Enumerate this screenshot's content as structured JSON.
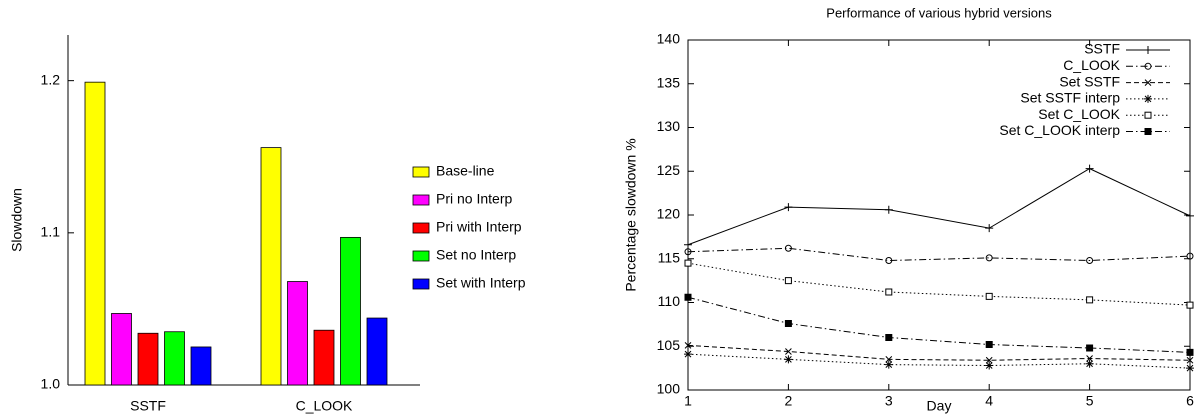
{
  "chart_data": [
    {
      "type": "bar",
      "y_label": "Slowdown",
      "categories": [
        "SSTF",
        "C_LOOK"
      ],
      "ylim": [
        1.0,
        1.23
      ],
      "yticks": [
        {
          "value": 1.0,
          "label": "1.0"
        },
        1.1,
        1.2
      ],
      "series": [
        {
          "name": "Base-line",
          "color": "#ffff00",
          "values": [
            1.199,
            1.156
          ]
        },
        {
          "name": "Pri no Interp",
          "color": "#ff00ff",
          "values": [
            1.047,
            1.068
          ]
        },
        {
          "name": "Pri with Interp",
          "color": "#ff0000",
          "values": [
            1.034,
            1.036
          ]
        },
        {
          "name": "Set no Interp",
          "color": "#00ff00",
          "values": [
            1.035,
            1.097
          ]
        },
        {
          "name": "Set with Interp",
          "color": "#0000ff",
          "values": [
            1.025,
            1.044
          ]
        }
      ]
    },
    {
      "type": "line",
      "title": "Performance of various hybrid versions",
      "x_label": "Day",
      "y_label": "Percentage slowdown %",
      "x": [
        1,
        2,
        3,
        4,
        5,
        6
      ],
      "xlim": [
        1,
        6
      ],
      "xticks": [
        1,
        2,
        3,
        4,
        5,
        6
      ],
      "ylim": [
        100,
        140
      ],
      "yticks": [
        100,
        105,
        110,
        115,
        120,
        125,
        130,
        135,
        140
      ],
      "legend": "top-right",
      "series": [
        {
          "name": "SSTF",
          "color": "#000000",
          "linestyle": "solid",
          "marker": "plus",
          "values": [
            116.6,
            120.9,
            120.6,
            118.5,
            125.3,
            119.9
          ]
        },
        {
          "name": "C_LOOK",
          "color": "#000000",
          "linestyle": "dashdot",
          "marker": "circle",
          "values": [
            115.8,
            116.2,
            114.8,
            115.1,
            114.8,
            115.3
          ]
        },
        {
          "name": "Set SSTF",
          "color": "#000000",
          "linestyle": "dashed",
          "marker": "x",
          "values": [
            105.1,
            104.4,
            103.5,
            103.4,
            103.6,
            103.4
          ]
        },
        {
          "name": "Set SSTF interp",
          "color": "#000000",
          "linestyle": "dotted",
          "marker": "star",
          "values": [
            104.1,
            103.5,
            102.9,
            102.8,
            103.0,
            102.5
          ]
        },
        {
          "name": "Set C_LOOK",
          "color": "#000000",
          "linestyle": "dotted",
          "marker": "square",
          "values": [
            114.5,
            112.5,
            111.2,
            110.7,
            110.3,
            109.7
          ]
        },
        {
          "name": "Set C_LOOK interp",
          "color": "#000000",
          "linestyle": "dashdot",
          "marker": "filled-square",
          "values": [
            110.6,
            107.6,
            106.0,
            105.2,
            104.8,
            104.3
          ]
        }
      ]
    }
  ]
}
